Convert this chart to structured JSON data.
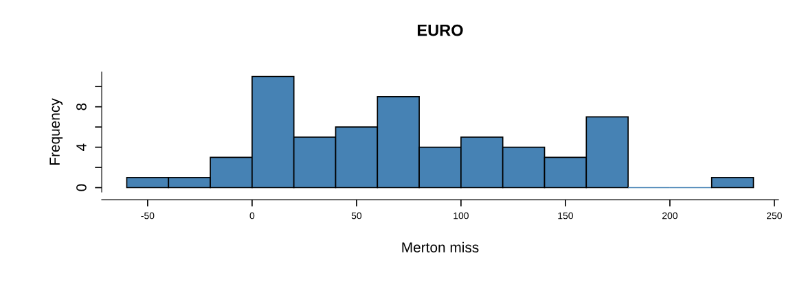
{
  "chart_data": {
    "type": "histogram",
    "title": "EURO",
    "xlabel": "Merton miss",
    "ylabel": "Frequency",
    "bins": [
      -60,
      -40,
      -20,
      0,
      20,
      40,
      60,
      80,
      100,
      120,
      140,
      160,
      180,
      200,
      220,
      240
    ],
    "values": [
      1,
      1,
      3,
      11,
      5,
      6,
      9,
      4,
      5,
      4,
      3,
      7,
      0,
      0,
      1
    ],
    "color": "#4682b4",
    "grid": false,
    "xlim": [
      -72,
      252
    ],
    "xticks": [
      -50,
      0,
      50,
      100,
      150,
      200,
      250
    ],
    "ylim": [
      -0.44,
      11.44
    ],
    "yticks": [
      0,
      {
        "value": 2,
        "label": null
      },
      4,
      {
        "value": 6,
        "label": null
      },
      8,
      {
        "value": 10,
        "label": null
      }
    ]
  }
}
